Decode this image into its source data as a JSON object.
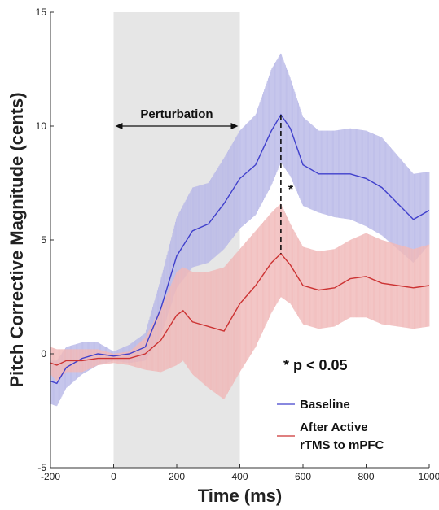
{
  "chart_data": {
    "type": "line",
    "xlabel": "Time (ms)",
    "ylabel": "Pitch Corrective Magnitude (cents)",
    "xlim": [
      -200,
      1000
    ],
    "ylim": [
      -5,
      15
    ],
    "xticks": [
      -200,
      0,
      200,
      400,
      600,
      800,
      1000
    ],
    "yticks": [
      -5,
      0,
      5,
      10,
      15
    ],
    "shaded_region": {
      "x": [
        0,
        400
      ],
      "color": "#e6e6e6",
      "label": "Perturbation"
    },
    "peak_marker": {
      "x": 530,
      "y_top": 10.5,
      "y_bottom": 4.4,
      "label": "*"
    },
    "significance_note": "*  p < 0.05",
    "legend": {
      "position": "bottom-right"
    },
    "series": [
      {
        "name": "Baseline",
        "color": "#4040cc",
        "fill": "#b8b8e8",
        "x": [
          -200,
          -180,
          -150,
          -100,
          -50,
          0,
          50,
          100,
          150,
          200,
          250,
          300,
          350,
          400,
          450,
          500,
          530,
          560,
          600,
          650,
          700,
          750,
          800,
          850,
          900,
          950,
          1000
        ],
        "y": [
          -1.2,
          -1.3,
          -0.6,
          -0.2,
          0.0,
          -0.1,
          0.0,
          0.3,
          2.0,
          4.3,
          5.4,
          5.7,
          6.6,
          7.7,
          8.3,
          9.8,
          10.5,
          9.9,
          8.3,
          7.9,
          7.9,
          7.9,
          7.7,
          7.3,
          6.6,
          5.9,
          6.3
        ],
        "lower": [
          -2.2,
          -2.3,
          -1.5,
          -0.9,
          -0.5,
          -0.3,
          -0.4,
          -0.3,
          0.8,
          2.9,
          3.8,
          4.0,
          4.6,
          5.5,
          6.1,
          7.4,
          8.4,
          7.8,
          6.5,
          6.2,
          6.0,
          5.9,
          5.6,
          5.2,
          4.6,
          4.0,
          4.8
        ],
        "upper": [
          -0.3,
          -0.3,
          0.3,
          0.5,
          0.5,
          0.1,
          0.4,
          0.9,
          3.3,
          6.0,
          7.3,
          7.5,
          8.6,
          9.8,
          10.5,
          12.5,
          13.2,
          12.1,
          10.4,
          9.8,
          9.8,
          9.9,
          9.8,
          9.5,
          8.7,
          7.9,
          8.0
        ]
      },
      {
        "name": "After Active rTMS to mPFC",
        "color": "#cc3333",
        "fill": "#f0b8b8",
        "x": [
          -200,
          -180,
          -150,
          -100,
          -50,
          0,
          50,
          100,
          150,
          200,
          220,
          250,
          300,
          350,
          400,
          450,
          500,
          530,
          560,
          600,
          650,
          700,
          750,
          800,
          850,
          900,
          950,
          1000
        ],
        "y": [
          -0.4,
          -0.5,
          -0.3,
          -0.3,
          -0.2,
          -0.2,
          -0.2,
          0.0,
          0.6,
          1.7,
          1.9,
          1.4,
          1.2,
          1.0,
          2.2,
          3.0,
          4.0,
          4.4,
          3.9,
          3.0,
          2.8,
          2.9,
          3.3,
          3.4,
          3.1,
          3.0,
          2.9,
          3.0
        ],
        "lower": [
          -0.9,
          -1.2,
          -0.8,
          -0.8,
          -0.5,
          -0.4,
          -0.5,
          -0.7,
          -0.8,
          -0.5,
          -0.3,
          -0.9,
          -1.5,
          -2.0,
          -0.8,
          0.3,
          1.8,
          2.5,
          2.2,
          1.3,
          1.1,
          1.2,
          1.6,
          1.6,
          1.3,
          1.2,
          1.1,
          1.2
        ],
        "upper": [
          0.3,
          0.2,
          0.2,
          0.2,
          0.2,
          0.0,
          0.1,
          0.7,
          2.0,
          3.6,
          3.8,
          3.6,
          3.6,
          3.8,
          4.6,
          5.4,
          6.2,
          6.6,
          5.7,
          4.7,
          4.5,
          4.6,
          5.0,
          5.3,
          5.0,
          4.8,
          4.6,
          4.8
        ]
      }
    ]
  }
}
